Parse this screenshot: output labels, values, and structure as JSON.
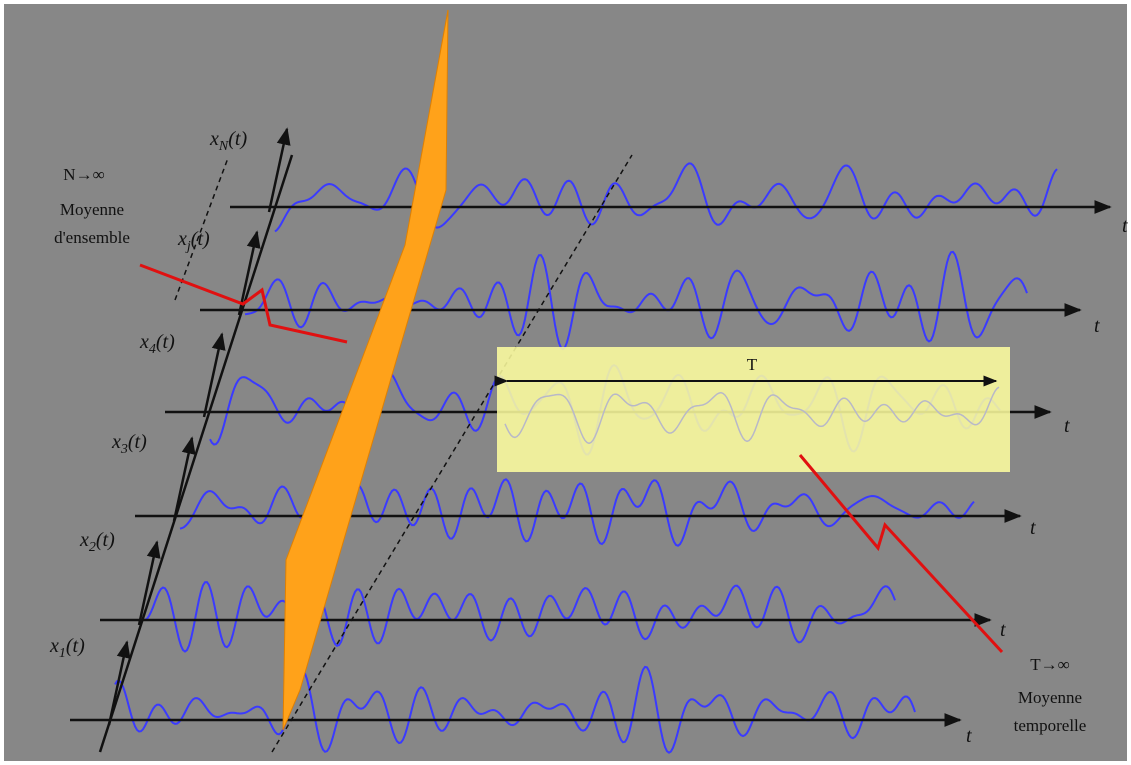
{
  "signals": [
    {
      "label": {
        "base": "x",
        "sub": "N",
        "arg": "(t)"
      },
      "axis_label": "t"
    },
    {
      "label": {
        "base": "x",
        "sub": "j",
        "arg": "(t)"
      },
      "axis_label": "t"
    },
    {
      "label": {
        "base": "x",
        "sub": "4",
        "arg": "(t)"
      },
      "axis_label": "t"
    },
    {
      "label": {
        "base": "x",
        "sub": "3",
        "arg": "(t)"
      },
      "axis_label": "t"
    },
    {
      "label": {
        "base": "x",
        "sub": "2",
        "arg": "(t)"
      },
      "axis_label": "t"
    },
    {
      "label": {
        "base": "x",
        "sub": "1",
        "arg": "(t)"
      },
      "axis_label": "t"
    }
  ],
  "ensemble_note": {
    "limit": "N→∞",
    "line1": "Moyenne",
    "line2": "d'ensemble"
  },
  "window_label": "T",
  "temporal_note": {
    "limit": "T→∞",
    "line1": "Moyenne",
    "line2": "temporelle"
  }
}
